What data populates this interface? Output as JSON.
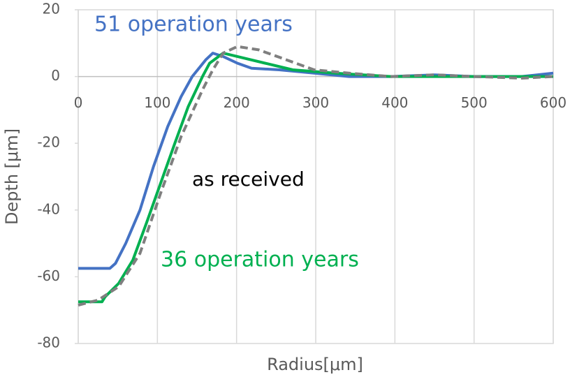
{
  "chart_data": {
    "type": "line",
    "x_label": "Radius[μm]",
    "y_label": "Depth [μm]",
    "xlim": [
      0,
      600
    ],
    "xticks": [
      0,
      100,
      200,
      300,
      400,
      500,
      600
    ],
    "ylim": [
      -80,
      20
    ],
    "yticks": [
      -80,
      -60,
      -40,
      -20,
      0,
      20
    ],
    "grid": true,
    "series": [
      {
        "name": "51 operation years",
        "color": "#4472c4",
        "label_color": "#4472c4",
        "dash": false,
        "x": [
          0,
          40,
          47,
          60,
          78,
          95,
          113,
          130,
          144,
          161,
          170,
          183,
          201,
          219,
          254,
          298,
          342,
          395,
          450,
          500,
          560,
          600
        ],
        "values": [
          -57.5,
          -57.5,
          -56,
          -50,
          -40,
          -27,
          -15,
          -6,
          0,
          5,
          7,
          6,
          4,
          2.5,
          2,
          1,
          0,
          0,
          0.5,
          0,
          0,
          1
        ]
      },
      {
        "name": "36 operation years",
        "color": "#00b050",
        "label_color": "#00b050",
        "dash": false,
        "x": [
          0,
          30,
          34,
          51,
          69,
          86,
          104,
          122,
          139,
          157,
          166,
          183,
          201,
          236,
          271,
          324,
          395,
          450,
          500,
          560,
          600
        ],
        "values": [
          -67.5,
          -67.5,
          -66,
          -62,
          -55,
          -44,
          -32,
          -20,
          -9,
          0,
          4,
          7,
          6,
          4,
          2,
          1,
          0,
          0,
          0,
          0,
          0
        ]
      },
      {
        "name": "as received",
        "color": "#7f7f7f",
        "label_color": "#000000",
        "dash": true,
        "x": [
          0,
          25,
          51,
          78,
          104,
          130,
          157,
          170,
          183,
          201,
          228,
          263,
          298,
          342,
          395,
          450,
          500,
          560,
          600
        ],
        "values": [
          -68.5,
          -67,
          -63,
          -53,
          -35,
          -18,
          -4,
          2,
          7,
          9,
          8,
          5,
          2,
          1,
          0,
          0.5,
          0,
          -0.5,
          0
        ]
      }
    ]
  }
}
